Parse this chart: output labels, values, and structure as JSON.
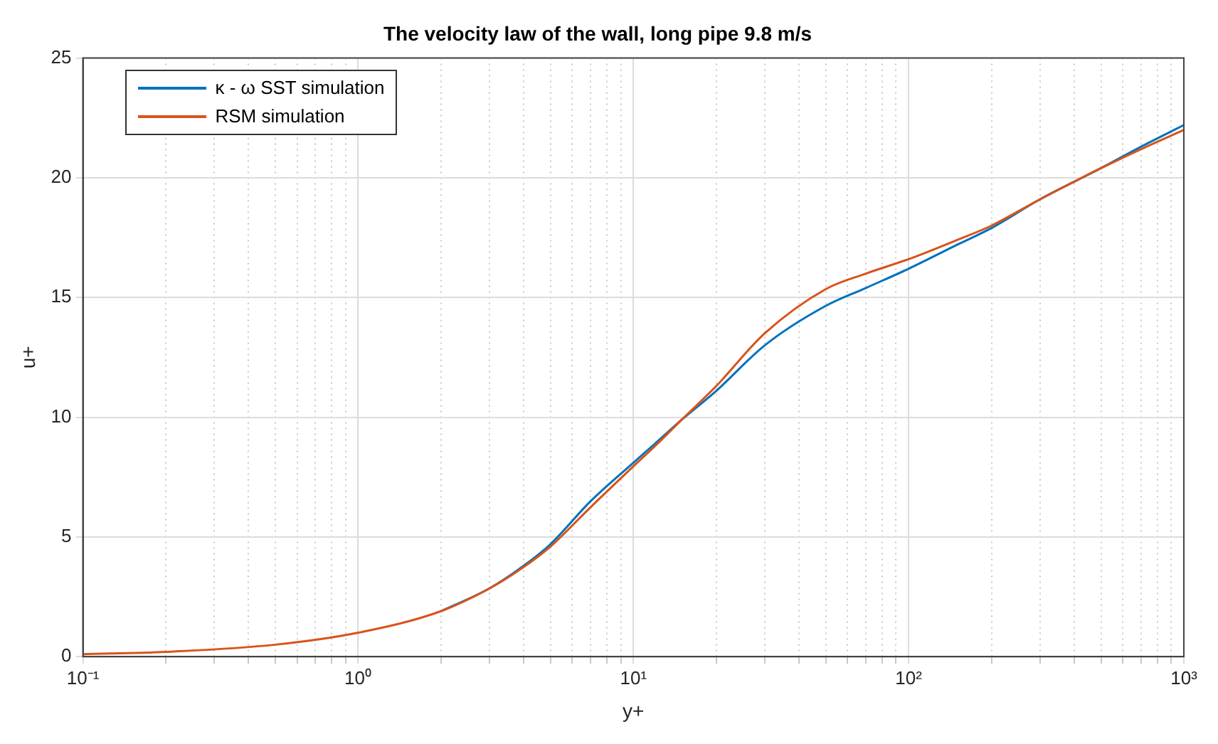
{
  "chart_data": {
    "type": "line",
    "title": "The velocity law of the wall, long pipe 9.8 m/s",
    "xlabel": "y+",
    "ylabel": "u+",
    "log": "x",
    "xlim": [
      0.1,
      1000
    ],
    "ylim": [
      0,
      25
    ],
    "yticks": [
      0,
      5,
      10,
      15,
      20,
      25
    ],
    "xticks": [
      {
        "value": 0.1,
        "label": "10⁻¹"
      },
      {
        "value": 0.2,
        "label": null
      },
      {
        "value": 0.3,
        "label": null
      },
      {
        "value": 0.4,
        "label": null
      },
      {
        "value": 0.5,
        "label": null
      },
      {
        "value": 0.6,
        "label": null
      },
      {
        "value": 0.7,
        "label": null
      },
      {
        "value": 0.8,
        "label": null
      },
      {
        "value": 0.9,
        "label": null
      },
      {
        "value": 1,
        "label": "10⁰"
      },
      {
        "value": 2,
        "label": null
      },
      {
        "value": 3,
        "label": null
      },
      {
        "value": 4,
        "label": null
      },
      {
        "value": 5,
        "label": null
      },
      {
        "value": 6,
        "label": null
      },
      {
        "value": 7,
        "label": null
      },
      {
        "value": 8,
        "label": null
      },
      {
        "value": 9,
        "label": null
      },
      {
        "value": 10,
        "label": "10¹"
      },
      {
        "value": 20,
        "label": null
      },
      {
        "value": 30,
        "label": null
      },
      {
        "value": 40,
        "label": null
      },
      {
        "value": 50,
        "label": null
      },
      {
        "value": 60,
        "label": null
      },
      {
        "value": 70,
        "label": null
      },
      {
        "value": 80,
        "label": null
      },
      {
        "value": 90,
        "label": null
      },
      {
        "value": 100,
        "label": "10²"
      },
      {
        "value": 200,
        "label": null
      },
      {
        "value": 300,
        "label": null
      },
      {
        "value": 400,
        "label": null
      },
      {
        "value": 500,
        "label": null
      },
      {
        "value": 600,
        "label": null
      },
      {
        "value": 700,
        "label": null
      },
      {
        "value": 800,
        "label": null
      },
      {
        "value": 900,
        "label": null
      },
      {
        "value": 1000,
        "label": "10³"
      }
    ],
    "grid": true,
    "legend": "top left",
    "line_style": "solid",
    "marker": "none",
    "series": [
      {
        "name": "κ - ω SST simulation",
        "color": "#0072bd",
        "x": [
          2,
          3,
          4,
          5,
          7,
          10,
          12,
          15,
          20,
          30,
          50,
          70,
          100,
          150,
          200,
          300,
          500,
          700,
          1000
        ],
        "values": [
          1.9,
          2.85,
          3.8,
          4.7,
          6.5,
          8.1,
          8.9,
          9.9,
          11.1,
          13.0,
          14.65,
          15.4,
          16.2,
          17.2,
          17.9,
          19.1,
          20.4,
          21.3,
          22.2
        ]
      },
      {
        "name": "RSM simulation",
        "color": "#d95319",
        "x": [
          0.1,
          0.2,
          0.5,
          1,
          2,
          3,
          4,
          5,
          7,
          10,
          12,
          15,
          20,
          30,
          50,
          70,
          100,
          150,
          200,
          300,
          500,
          700,
          1000
        ],
        "values": [
          0.1,
          0.2,
          0.5,
          1,
          1.9,
          2.85,
          3.75,
          4.6,
          6.25,
          7.95,
          8.8,
          9.9,
          11.3,
          13.5,
          15.35,
          16.0,
          16.6,
          17.4,
          18.0,
          19.1,
          20.4,
          21.2,
          22.0
        ]
      }
    ]
  }
}
